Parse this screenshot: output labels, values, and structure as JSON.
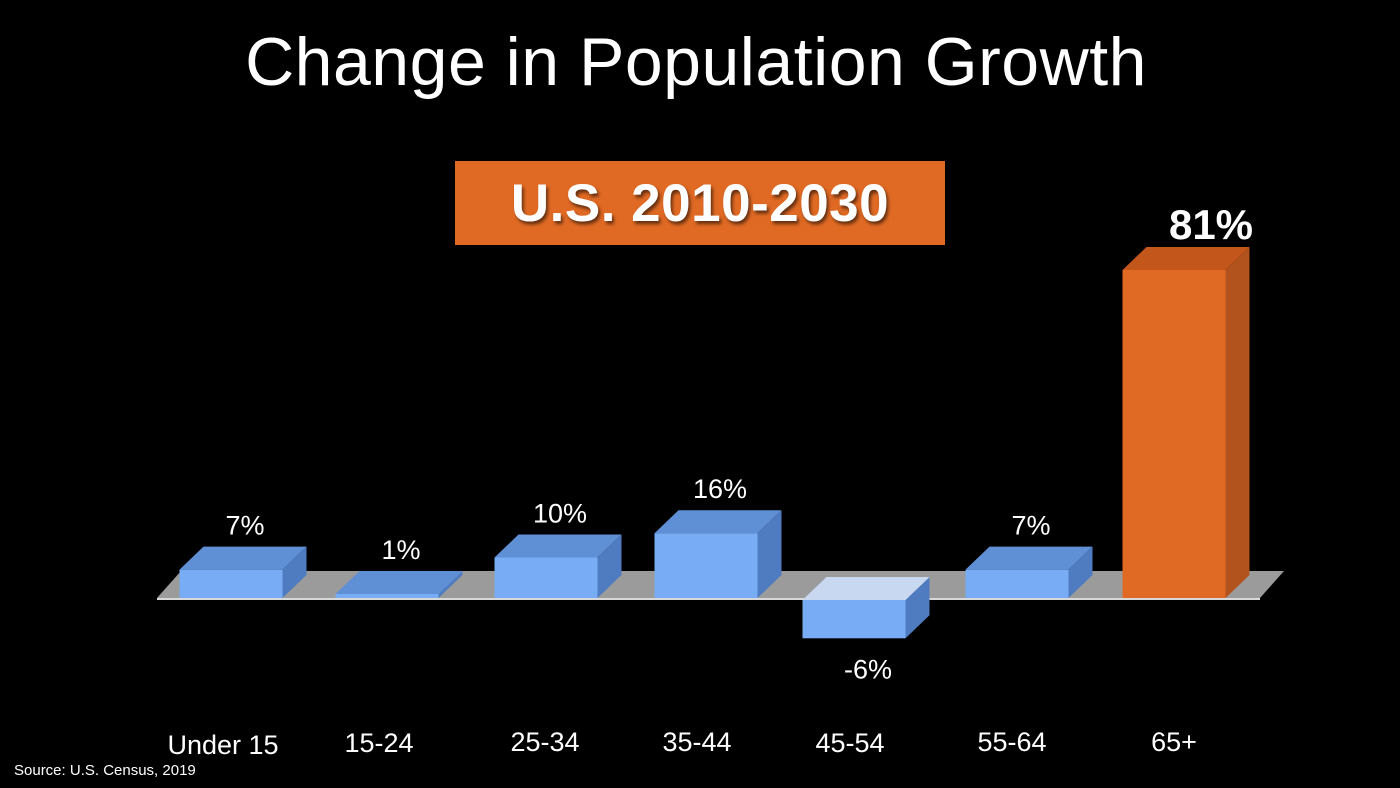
{
  "title": "Change in Population Growth",
  "subtitle": "U.S. 2010-2030",
  "source": "Source: U.S. Census, 2019",
  "colors": {
    "background": "#000000",
    "bar_front": "#78acf5",
    "bar_top": "#5f8fd4",
    "bar_side": "#4f7cc0",
    "negative_top": "#c8d8f0",
    "highlight_front": "#e06a24",
    "highlight_top": "#c3561b",
    "highlight_side": "#b2521c",
    "floor": "#9b9b9b",
    "subtitle_box": "#e06a24"
  },
  "chart_data": {
    "type": "bar",
    "style": "3d",
    "categories": [
      "Under 15",
      "15-24",
      "25-34",
      "35-44",
      "45-54",
      "55-64",
      "65+"
    ],
    "values": [
      7,
      1,
      10,
      16,
      -6,
      7,
      81
    ],
    "value_labels": [
      "7%",
      "1%",
      "10%",
      "16%",
      "-6%",
      "7%",
      "81%"
    ],
    "highlight_index": 6,
    "unit": "%",
    "grid": false,
    "legend": "none"
  }
}
